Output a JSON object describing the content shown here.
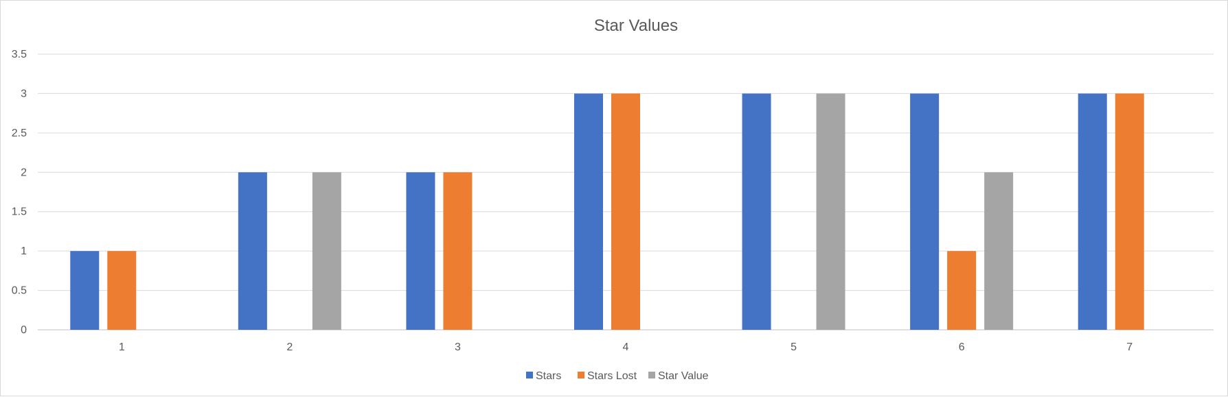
{
  "chart_data": {
    "type": "bar",
    "title": "Star Values",
    "xlabel": "",
    "ylabel": "",
    "categories": [
      "1",
      "2",
      "3",
      "4",
      "5",
      "6",
      "7"
    ],
    "series": [
      {
        "name": "Stars",
        "color": "#4472C4",
        "values": [
          1,
          2,
          2,
          3,
          3,
          3,
          3
        ]
      },
      {
        "name": "Stars Lost",
        "color": "#ED7D31",
        "values": [
          1,
          0,
          2,
          3,
          0,
          1,
          3
        ]
      },
      {
        "name": "Star Value",
        "color": "#A5A5A5",
        "values": [
          0,
          2,
          0,
          0,
          3,
          2,
          0
        ]
      }
    ],
    "ylim": [
      0,
      3.5
    ],
    "yticks": [
      "0",
      "0.5",
      "1",
      "1.5",
      "2",
      "2.5",
      "3",
      "3.5"
    ],
    "grid": true,
    "legend_position": "bottom"
  }
}
